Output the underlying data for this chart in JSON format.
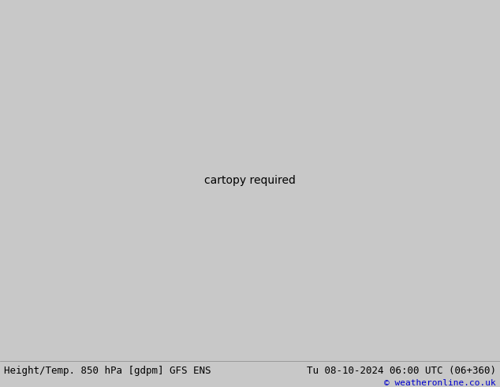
{
  "footer_left": "Height/Temp. 850 hPa [gdpm] GFS ENS",
  "footer_right": "Tu 08-10-2024 06:00 UTC (06+360)",
  "footer_copyright": "© weatheronline.co.uk",
  "figsize": [
    6.34,
    4.9
  ],
  "dpi": 100,
  "extent": [
    -175,
    -50,
    15,
    82
  ],
  "bg_color": "#c8c8c8",
  "ocean_color": "#c8c8c8",
  "land_green_color": "#c8f0a0",
  "land_gray_color": "#b4b4b4",
  "border_color": "#787878",
  "footer_font_size": 9
}
